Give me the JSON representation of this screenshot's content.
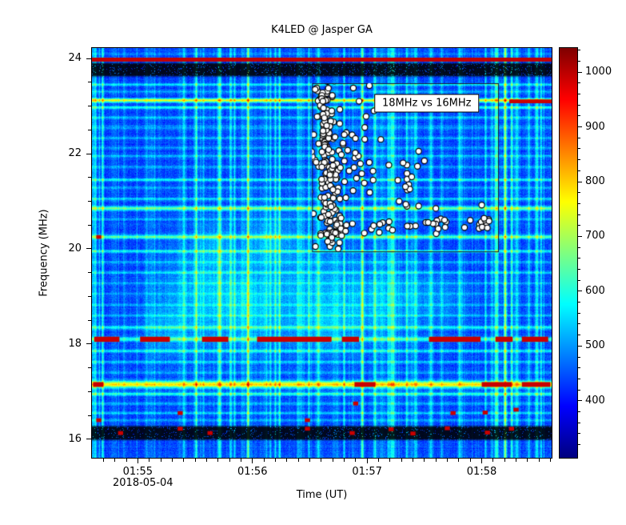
{
  "chart_data": {
    "type": "heatmap",
    "title": "K4LED @ Jasper GA",
    "xlabel": "Time (UT)",
    "ylabel": "Frequency (MHz)",
    "date_label": "2018-05-04",
    "x_axis": {
      "min_minutes": 114.6,
      "max_minutes": 118.61,
      "major_ticks": [
        {
          "minutes": 115,
          "label": "01:55"
        },
        {
          "minutes": 116,
          "label": "01:56"
        },
        {
          "minutes": 117,
          "label": "01:57"
        },
        {
          "minutes": 118,
          "label": "01:58"
        }
      ],
      "minor_step_minutes": 0.1
    },
    "y_axis": {
      "min": 15.61,
      "max": 24.22,
      "major_ticks": [
        16,
        18,
        20,
        22,
        24
      ],
      "minor_step": 0.5
    },
    "colorbar": {
      "min": 296,
      "max": 1044,
      "major_ticks": [
        400,
        500,
        600,
        700,
        800,
        900,
        1000
      ],
      "minor_step": 20,
      "colormap": "jet"
    },
    "spectrogram": {
      "seed": 42,
      "base_value": 438,
      "noise": 55,
      "red_line_f": [
        23.94,
        24.01
      ],
      "black_bands": [
        [
          23.6,
          23.93
        ],
        [
          15.96,
          16.3
        ]
      ],
      "bands": [
        [
          24.1,
          0.02,
          40
        ],
        [
          23.45,
          0.02,
          110
        ],
        [
          23.3,
          0.02,
          60
        ],
        [
          23.12,
          0.028,
          300
        ],
        [
          22.97,
          0.02,
          150
        ],
        [
          22.76,
          0.02,
          80
        ],
        [
          22.55,
          0.03,
          55
        ],
        [
          22.33,
          0.02,
          70
        ],
        [
          22.12,
          0.02,
          55
        ],
        [
          21.95,
          0.02,
          90
        ],
        [
          21.72,
          0.02,
          65
        ],
        [
          21.45,
          0.022,
          140
        ],
        [
          21.28,
          0.02,
          60
        ],
        [
          21.05,
          0.02,
          100
        ],
        [
          20.85,
          0.03,
          200
        ],
        [
          20.62,
          0.02,
          70
        ],
        [
          20.25,
          0.028,
          190
        ],
        [
          19.95,
          0.022,
          130
        ],
        [
          19.72,
          0.02,
          60
        ],
        [
          19.5,
          0.02,
          85
        ],
        [
          19.28,
          0.02,
          55
        ],
        [
          19.05,
          0.02,
          45
        ],
        [
          18.82,
          0.02,
          55
        ],
        [
          18.6,
          0.02,
          65
        ],
        [
          18.35,
          0.025,
          140
        ],
        [
          18.1,
          0.03,
          170
        ],
        [
          17.85,
          0.022,
          130
        ],
        [
          17.62,
          0.02,
          90
        ],
        [
          17.4,
          0.02,
          70
        ],
        [
          17.15,
          0.05,
          330
        ],
        [
          16.95,
          0.025,
          160
        ],
        [
          16.75,
          0.02,
          75
        ],
        [
          16.55,
          0.02,
          95
        ],
        [
          16.4,
          0.02,
          60
        ]
      ],
      "patches": [
        [
          115.55,
          19.2,
          0.28,
          0.8,
          70
        ],
        [
          115.95,
          18.7,
          0.22,
          0.6,
          60
        ],
        [
          116.45,
          19.4,
          0.3,
          0.9,
          55
        ],
        [
          116.95,
          18.8,
          0.25,
          0.6,
          50
        ],
        [
          115.25,
          18.3,
          0.15,
          0.4,
          55
        ],
        [
          117.35,
          19.0,
          0.2,
          0.5,
          40
        ],
        [
          116.15,
          20.2,
          0.12,
          0.35,
          55
        ],
        [
          115.7,
          20.1,
          0.1,
          0.3,
          45
        ],
        [
          116.6,
          18.4,
          0.2,
          0.4,
          45
        ],
        [
          117.7,
          18.9,
          0.15,
          0.4,
          35
        ]
      ],
      "strong_streaks": [
        [
          114.63,
          120,
          2
        ],
        [
          114.69,
          150,
          2
        ],
        [
          115.57,
          90,
          2
        ],
        [
          115.84,
          100,
          2
        ],
        [
          115.96,
          110,
          2
        ],
        [
          116.2,
          120,
          2
        ],
        [
          116.39,
          90,
          2
        ],
        [
          116.49,
          100,
          2
        ],
        [
          116.8,
          110,
          2
        ],
        [
          116.95,
          125,
          2
        ],
        [
          117.07,
          100,
          2
        ],
        [
          117.23,
          90,
          2
        ],
        [
          117.42,
          115,
          2
        ],
        [
          117.56,
          90,
          2
        ],
        [
          117.8,
          100,
          2
        ],
        [
          118.03,
          110,
          2
        ],
        [
          118.13,
          145,
          3
        ],
        [
          118.2,
          130,
          2
        ],
        [
          118.26,
          120,
          2
        ],
        [
          118.41,
          100,
          2
        ]
      ],
      "weak_streak_count": 150,
      "red_segments": [
        {
          "f": 18.1,
          "hf": 0.055,
          "t0": 114.62,
          "t1": 114.84
        },
        {
          "f": 18.1,
          "hf": 0.055,
          "t0": 115.02,
          "t1": 115.28
        },
        {
          "f": 18.1,
          "hf": 0.055,
          "t0": 115.56,
          "t1": 115.79
        },
        {
          "f": 18.1,
          "hf": 0.055,
          "t0": 116.04,
          "t1": 116.69
        },
        {
          "f": 18.1,
          "hf": 0.055,
          "t0": 116.78,
          "t1": 116.93
        },
        {
          "f": 18.1,
          "hf": 0.055,
          "t0": 117.54,
          "t1": 117.99
        },
        {
          "f": 18.1,
          "hf": 0.055,
          "t0": 118.12,
          "t1": 118.27
        },
        {
          "f": 18.1,
          "hf": 0.055,
          "t0": 118.35,
          "t1": 118.58
        },
        {
          "f": 23.1,
          "hf": 0.04,
          "t0": 118.24,
          "t1": 118.61
        },
        {
          "f": 23.1,
          "hf": 0.04,
          "t0": 117.52,
          "t1": 117.6
        },
        {
          "f": 17.15,
          "hf": 0.05,
          "t0": 114.61,
          "t1": 114.7
        },
        {
          "f": 17.15,
          "hf": 0.05,
          "t0": 116.89,
          "t1": 117.07
        },
        {
          "f": 17.15,
          "hf": 0.05,
          "t0": 118.0,
          "t1": 118.26
        },
        {
          "f": 17.15,
          "hf": 0.05,
          "t0": 118.35,
          "t1": 118.6
        }
      ],
      "red_spots": [
        {
          "t": 114.85,
          "f": 16.13
        },
        {
          "t": 115.63,
          "f": 16.13
        },
        {
          "t": 116.87,
          "f": 16.13
        },
        {
          "t": 117.4,
          "f": 16.12
        },
        {
          "t": 118.05,
          "f": 16.14
        },
        {
          "t": 115.37,
          "f": 16.22
        },
        {
          "t": 116.48,
          "f": 16.22
        },
        {
          "t": 117.21,
          "f": 16.21
        },
        {
          "t": 117.7,
          "f": 16.23
        },
        {
          "t": 118.26,
          "f": 16.22
        },
        {
          "t": 114.66,
          "f": 16.4
        },
        {
          "t": 116.48,
          "f": 16.4
        },
        {
          "t": 115.37,
          "f": 16.55
        },
        {
          "t": 117.75,
          "f": 16.55
        },
        {
          "t": 118.03,
          "f": 16.56
        },
        {
          "t": 118.3,
          "f": 16.62
        },
        {
          "t": 116.9,
          "f": 16.75
        },
        {
          "t": 114.66,
          "f": 20.25
        }
      ]
    },
    "inset": {
      "label": "18MHz vs 16MHz",
      "label_pos": {
        "t": 117.52,
        "f": 23.06
      },
      "box": {
        "t0": 116.52,
        "t1": 118.15,
        "f0": 19.93,
        "f1": 23.48
      },
      "clusters": [
        {
          "t": 116.62,
          "f": 23.05,
          "st": 0.045,
          "sf": 0.28,
          "n": 40
        },
        {
          "t": 116.64,
          "f": 22.3,
          "st": 0.05,
          "sf": 0.35,
          "n": 45
        },
        {
          "t": 116.66,
          "f": 21.5,
          "st": 0.055,
          "sf": 0.4,
          "n": 45
        },
        {
          "t": 116.68,
          "f": 20.7,
          "st": 0.06,
          "sf": 0.3,
          "n": 35
        },
        {
          "t": 116.7,
          "f": 20.25,
          "st": 0.05,
          "sf": 0.12,
          "n": 18
        },
        {
          "t": 116.85,
          "f": 22.1,
          "st": 0.12,
          "sf": 0.45,
          "n": 22
        },
        {
          "t": 117.0,
          "f": 21.5,
          "st": 0.12,
          "sf": 0.3,
          "n": 10
        },
        {
          "t": 117.35,
          "f": 21.4,
          "st": 0.06,
          "sf": 0.28,
          "n": 13
        },
        {
          "t": 117.0,
          "f": 20.45,
          "st": 0.18,
          "sf": 0.09,
          "n": 16
        },
        {
          "t": 117.55,
          "f": 20.5,
          "st": 0.17,
          "sf": 0.08,
          "n": 14
        },
        {
          "t": 118.02,
          "f": 20.55,
          "st": 0.05,
          "sf": 0.07,
          "n": 10
        }
      ],
      "points": [
        [
          116.88,
          23.38
        ],
        [
          117.02,
          23.43
        ],
        [
          116.93,
          23.1
        ],
        [
          117.06,
          22.9
        ],
        [
          116.98,
          22.55
        ],
        [
          117.12,
          22.3
        ],
        [
          117.45,
          22.05
        ],
        [
          117.5,
          21.85
        ],
        [
          117.28,
          21.0
        ],
        [
          117.45,
          20.9
        ],
        [
          117.6,
          20.85
        ],
        [
          118.0,
          20.92
        ],
        [
          116.55,
          20.05
        ],
        [
          117.85,
          20.45
        ],
        [
          117.9,
          20.6
        ],
        [
          116.45,
          22.8
        ],
        [
          116.48,
          21.9
        ],
        [
          116.5,
          21.2
        ]
      ]
    }
  }
}
